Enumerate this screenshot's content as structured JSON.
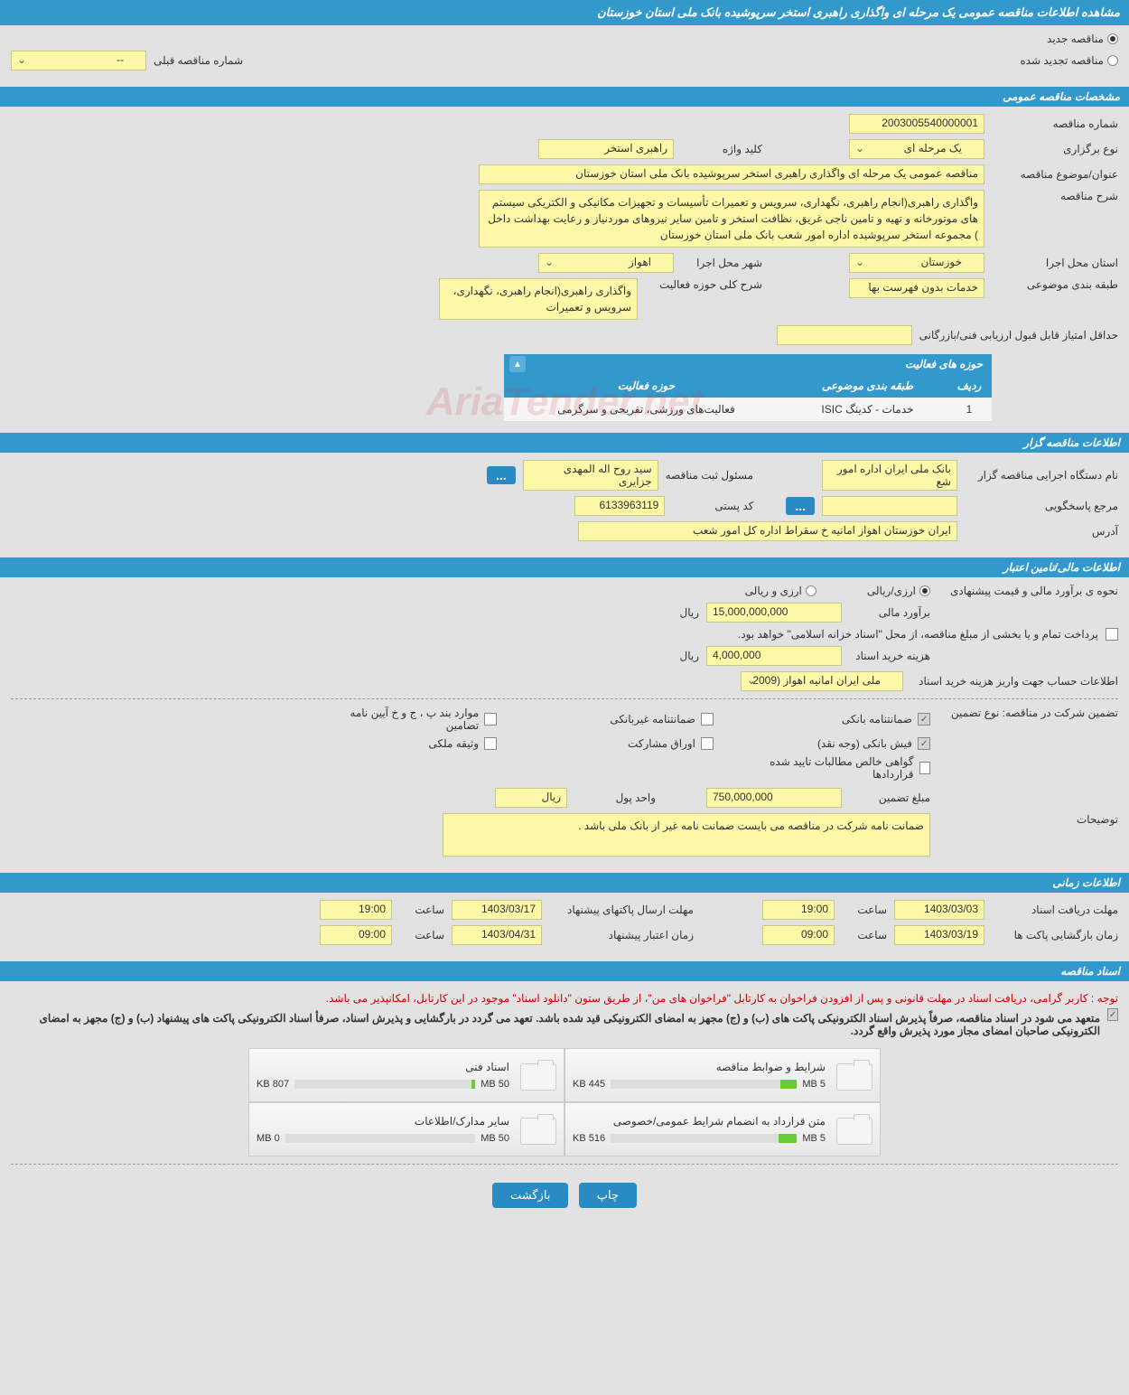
{
  "header": {
    "title": "مشاهده اطلاعات مناقصه عمومی یک مرحله ای واگذاری راهبری استخر سرپوشیده بانک ملی استان خوزستان"
  },
  "tender_type": {
    "new_label": "مناقصه جدید",
    "renewed_label": "مناقصه تجدید شده",
    "prev_number_label": "شماره مناقصه قبلی",
    "prev_number_value": "--"
  },
  "general": {
    "section_title": "مشخصات مناقصه عمومی",
    "tender_no_label": "شماره مناقصه",
    "tender_no": "2003005540000001",
    "holding_type_label": "نوع برگزاری",
    "holding_type": "یک مرحله ای",
    "keyword_label": "کلید واژه",
    "keyword": "راهبری استخر",
    "subject_label": "عنوان/موضوع مناقصه",
    "subject": "مناقصه عمومی یک مرحله ای واگذاری راهبری استخر سرپوشیده بانک ملی استان خوزستان",
    "desc_label": "شرح مناقصه",
    "desc": "واگذاری راهبری(انجام راهبری، نگهداری، سرویس و تعمیرات تأسیسات و تجهیزات مکانیکی و الکتریکی سیستم های موتورخانه و تهیه و تامین ناجی غریق، نظافت استخر و تامین سایر نیروهای موردنیاز و رعایت بهداشت داخل ) مجموعه استخر سرپوشیده اداره امور شعب بانک ملی استان خوزستان",
    "province_label": "استان محل اجرا",
    "province": "خوزستان",
    "city_label": "شهر محل اجرا",
    "city": "اهواز",
    "category_label": "طبقه بندی موضوعی",
    "category": "خدمات بدون فهرست بها",
    "activity_scope_label": "شرح کلی حوزه فعالیت",
    "activity_scope": "واگذاری راهبری(انجام راهبری، نگهداری، سرویس و تعمیرات",
    "min_score_label": "حداقل امتیاز قابل قبول ارزیابی فنی/بازرگانی"
  },
  "activities": {
    "section_title": "حوزه های فعالیت",
    "col_row": "ردیف",
    "col_category": "طبقه بندی موضوعی",
    "col_scope": "حوزه فعالیت",
    "rows": [
      {
        "idx": "1",
        "category": "خدمات - کدینگ ISIC",
        "scope": "فعالیت‌های ورزشی، تفریحی و سرگرمی"
      }
    ]
  },
  "organizer": {
    "section_title": "اطلاعات مناقصه گزار",
    "agency_label": "نام دستگاه اجرایی مناقصه گزار",
    "agency": "بانک ملی ایران اداره امور شع",
    "registrar_label": "مسئول ثبت مناقصه",
    "registrar": "سید روح اله  المهدی جزایری",
    "contact_label": "مرجع پاسخگویی",
    "postal_label": "کد پستی",
    "postal": "6133963119",
    "address_label": "آدرس",
    "address": "ایران خوزستان اهواز امانیه خ سقراط اداره کل امور شعب"
  },
  "financial": {
    "section_title": "اطلاعات مالی/تامین اعتبار",
    "estimate_label": "نحوه ی برآورد مالی و قیمت پیشنهادی",
    "rial_opt": "ارزی/ریالی",
    "currency_opt": "ارزی و ریالی",
    "amount_label": "برآورد مالی",
    "amount": "15,000,000,000",
    "unit": "ریال",
    "payment_note": "پرداخت تمام و یا بخشی از مبلغ مناقصه، از محل \"اسناد خزانه اسلامی\" خواهد بود.",
    "doc_fee_label": "هزینه خرید اسناد",
    "doc_fee": "4,000,000",
    "account_label": "اطلاعات حساب جهت واریز هزینه خرید اسناد",
    "account": "ملی ایران امانیه اهواز (2009"
  },
  "guarantee": {
    "type_label": "تضمین شرکت در مناقصه:    نوع تضمین",
    "bank_guarantee": "ضمانتنامه بانکی",
    "nonbank_guarantee": "ضمانتنامه غیربانکی",
    "regulation_items": "موارد بند پ ، ج و خ آیین نامه تضامین",
    "bank_receipt": "فیش بانکی (وجه نقد)",
    "bonds": "اوراق مشارکت",
    "property_deposit": "وثیقه ملکی",
    "contract_cert": "گواهی خالص مطالبات تایید شده قراردادها",
    "amount_label": "مبلغ تضمین",
    "amount": "750,000,000",
    "unit_label": "واحد پول",
    "unit": "ریال",
    "note_label": "توضیحات",
    "note": "ضمانت نامه شرکت در مناقصه می بایست ضمانت نامه غیر از بانک ملی باشد ."
  },
  "timing": {
    "section_title": "اطلاعات زمانی",
    "doc_deadline_label": "مهلت دریافت اسناد",
    "doc_deadline_date": "1403/03/03",
    "doc_deadline_time_label": "ساعت",
    "doc_deadline_time": "19:00",
    "bid_deadline_label": "مهلت ارسال پاکتهای پیشنهاد",
    "bid_deadline_date": "1403/03/17",
    "bid_deadline_time": "19:00",
    "open_label": "زمان بازگشایی پاکت ها",
    "open_date": "1403/03/19",
    "open_time": "09:00",
    "validity_label": "زمان اعتبار پیشنهاد",
    "validity_date": "1403/04/31",
    "validity_time": "09:00"
  },
  "documents": {
    "section_title": "اسناد مناقصه",
    "notice_red": "توجه : کاربر گرامی، دریافت اسناد در مهلت قانونی و پس از افزودن فراخوان به کارتابل \"فراخوان های من\"، از طریق ستون \"دانلود اسناد\" موجود در این کارتابل، امکانپذیر می باشد.",
    "notice_bold": "متعهد می شود در اسناد مناقصه، صرفاً پذیرش اسناد الکترونیکی پاکت های (ب) و (ج) مجهز به امضای الکترونیکی قید شده باشد. تعهد می گردد در بارگشایی و پذیرش اسناد، صرفأ اسناد الکترونیکی پاکت های پیشنهاد (ب) و (ج) مجهز به امضای الکترونیکی صاحبان امضای مجاز مورد پذیرش واقع گردد.",
    "items": [
      {
        "title": "شرایط و ضوابط مناقصه",
        "size": "445 KB",
        "max": "5 MB",
        "pct": 9
      },
      {
        "title": "اسناد فنی",
        "size": "807 KB",
        "max": "50 MB",
        "pct": 2
      },
      {
        "title": "متن قرارداد به انضمام شرایط عمومی/خصوصی",
        "size": "516 KB",
        "max": "5 MB",
        "pct": 10
      },
      {
        "title": "سایر مدارک/اطلاعات",
        "size": "0 MB",
        "max": "50 MB",
        "pct": 0
      }
    ]
  },
  "footer": {
    "print": "چاپ",
    "back": "بازگشت"
  },
  "watermark": "AriaTender.net"
}
